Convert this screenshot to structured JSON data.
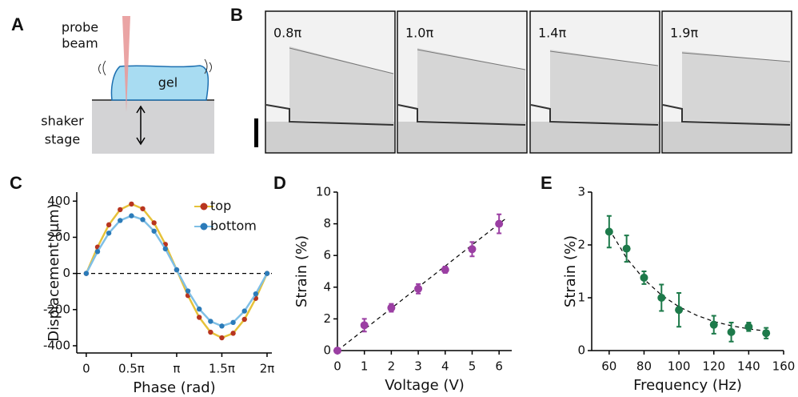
{
  "panel_a": {
    "letter": "A",
    "probe": "probe",
    "beam": "beam",
    "gel": "gel",
    "shaker": "shaker",
    "stage": "stage"
  },
  "panel_b": {
    "letter": "B",
    "frames": [
      "0.8π",
      "1.0π",
      "1.4π",
      "1.9π"
    ]
  },
  "chart_data": [
    {
      "type": "line",
      "panel": "C",
      "xlabel": "Phase (rad)",
      "ylabel": "Displacement (µm)",
      "x": [
        0,
        0.393,
        0.785,
        1.178,
        1.571,
        1.963,
        2.356,
        2.749,
        3.142,
        3.534,
        3.927,
        4.32,
        4.712,
        5.105,
        5.498,
        5.89,
        6.283
      ],
      "series": [
        {
          "name": "top",
          "color": "#b8351f",
          "line_color": "#e6c23a",
          "values": [
            0,
            146,
            269,
            353,
            384,
            358,
            280,
            161,
            20,
            -122,
            -243,
            -325,
            -356,
            -331,
            -254,
            -138,
            0
          ]
        },
        {
          "name": "bottom",
          "color": "#2b7bb9",
          "line_color": "#7fbfe6",
          "values": [
            0,
            121,
            223,
            293,
            319,
            298,
            234,
            136,
            20,
            -97,
            -197,
            -265,
            -291,
            -271,
            -208,
            -113,
            0
          ]
        }
      ],
      "xlim": [
        -0.33,
        6.45
      ],
      "ylim": [
        -440,
        450
      ],
      "xticks": [
        0,
        {
          "value": 1.571,
          "label": "0.5π"
        },
        {
          "value": 3.142,
          "label": "π"
        },
        {
          "value": 4.712,
          "label": "1.5π"
        },
        {
          "value": 6.283,
          "label": "2π"
        }
      ],
      "yticks": [
        -400,
        -200,
        0,
        200,
        400
      ],
      "zero_line": true,
      "legend": "upper right"
    },
    {
      "type": "scatter",
      "panel": "D",
      "xlabel": "Voltage (V)",
      "ylabel": "Strain (%)",
      "color": "#9b3fa3",
      "x": [
        0,
        1,
        2,
        3,
        4,
        5,
        6
      ],
      "values": [
        0,
        1.6,
        2.7,
        3.9,
        5.1,
        6.4,
        8.0
      ],
      "errors": [
        0,
        0.4,
        0.25,
        0.3,
        0.2,
        0.45,
        0.6
      ],
      "trend": {
        "x": [
          0,
          6.3
        ],
        "values": [
          0,
          8.4
        ]
      },
      "xlim": [
        0,
        6.47
      ],
      "ylim": [
        0,
        10
      ],
      "xticks": [
        0,
        1,
        2,
        3,
        4,
        5,
        6
      ],
      "yticks": [
        0,
        2,
        4,
        6,
        8,
        10
      ]
    },
    {
      "type": "scatter",
      "panel": "E",
      "xlabel": "Frequency (Hz)",
      "ylabel": "Strain (%)",
      "color": "#1d7a4a",
      "x": [
        60,
        70,
        80,
        90,
        100,
        120,
        130,
        140,
        150
      ],
      "values": [
        2.25,
        1.93,
        1.38,
        1.0,
        0.77,
        0.49,
        0.35,
        0.45,
        0.33
      ],
      "errors": [
        0.3,
        0.25,
        0.12,
        0.25,
        0.32,
        0.17,
        0.18,
        0.08,
        0.1
      ],
      "trend": {
        "x": [
          60,
          70,
          80,
          90,
          100,
          110,
          120,
          130,
          140,
          150
        ],
        "values": [
          2.3,
          1.75,
          1.35,
          1.05,
          0.83,
          0.67,
          0.55,
          0.47,
          0.41,
          0.37
        ]
      },
      "xlim": [
        50,
        160
      ],
      "ylim": [
        0,
        3
      ],
      "xticks": [
        60,
        80,
        100,
        120,
        140,
        160
      ],
      "yticks": [
        0,
        1,
        2,
        3
      ]
    }
  ]
}
